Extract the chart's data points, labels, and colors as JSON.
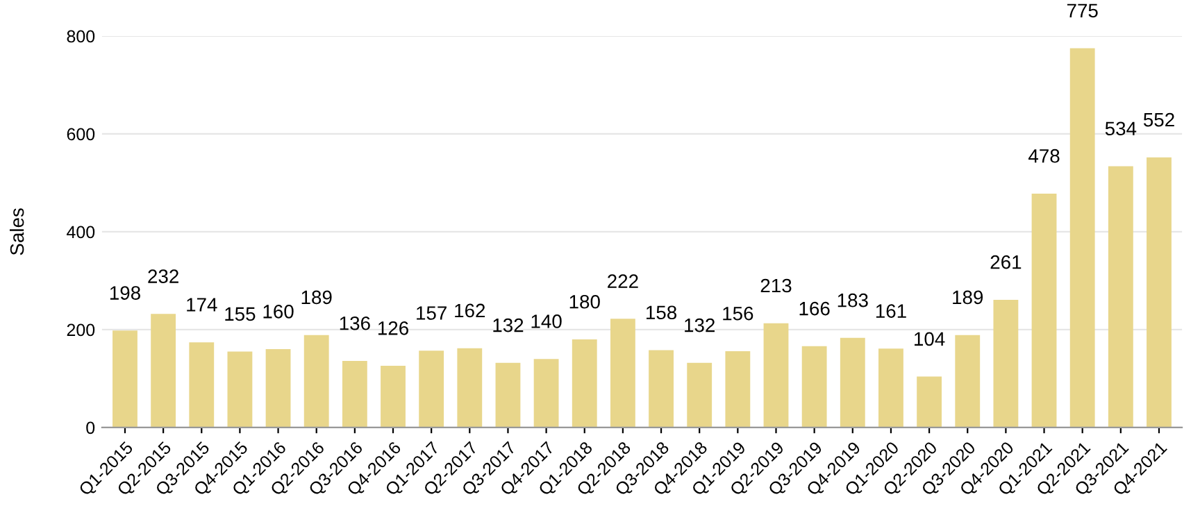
{
  "chart_data": {
    "type": "bar",
    "ylabel": "Sales",
    "categories": [
      "Q1-2015",
      "Q2-2015",
      "Q3-2015",
      "Q4-2015",
      "Q1-2016",
      "Q2-2016",
      "Q3-2016",
      "Q4-2016",
      "Q1-2017",
      "Q2-2017",
      "Q3-2017",
      "Q4-2017",
      "Q1-2018",
      "Q2-2018",
      "Q3-2018",
      "Q4-2018",
      "Q1-2019",
      "Q2-2019",
      "Q3-2019",
      "Q4-2019",
      "Q1-2020",
      "Q2-2020",
      "Q3-2020",
      "Q4-2020",
      "Q1-2021",
      "Q2-2021",
      "Q3-2021",
      "Q4-2021"
    ],
    "values": [
      198,
      232,
      174,
      155,
      160,
      189,
      136,
      126,
      157,
      162,
      132,
      140,
      180,
      222,
      158,
      132,
      156,
      213,
      166,
      183,
      161,
      104,
      189,
      261,
      478,
      775,
      534,
      552
    ],
    "color": "#e8d68b",
    "ylim": [
      0,
      800
    ],
    "yticks": [
      0,
      200,
      400,
      600,
      800
    ],
    "grid": "y",
    "data_labels": true,
    "legend": false
  }
}
